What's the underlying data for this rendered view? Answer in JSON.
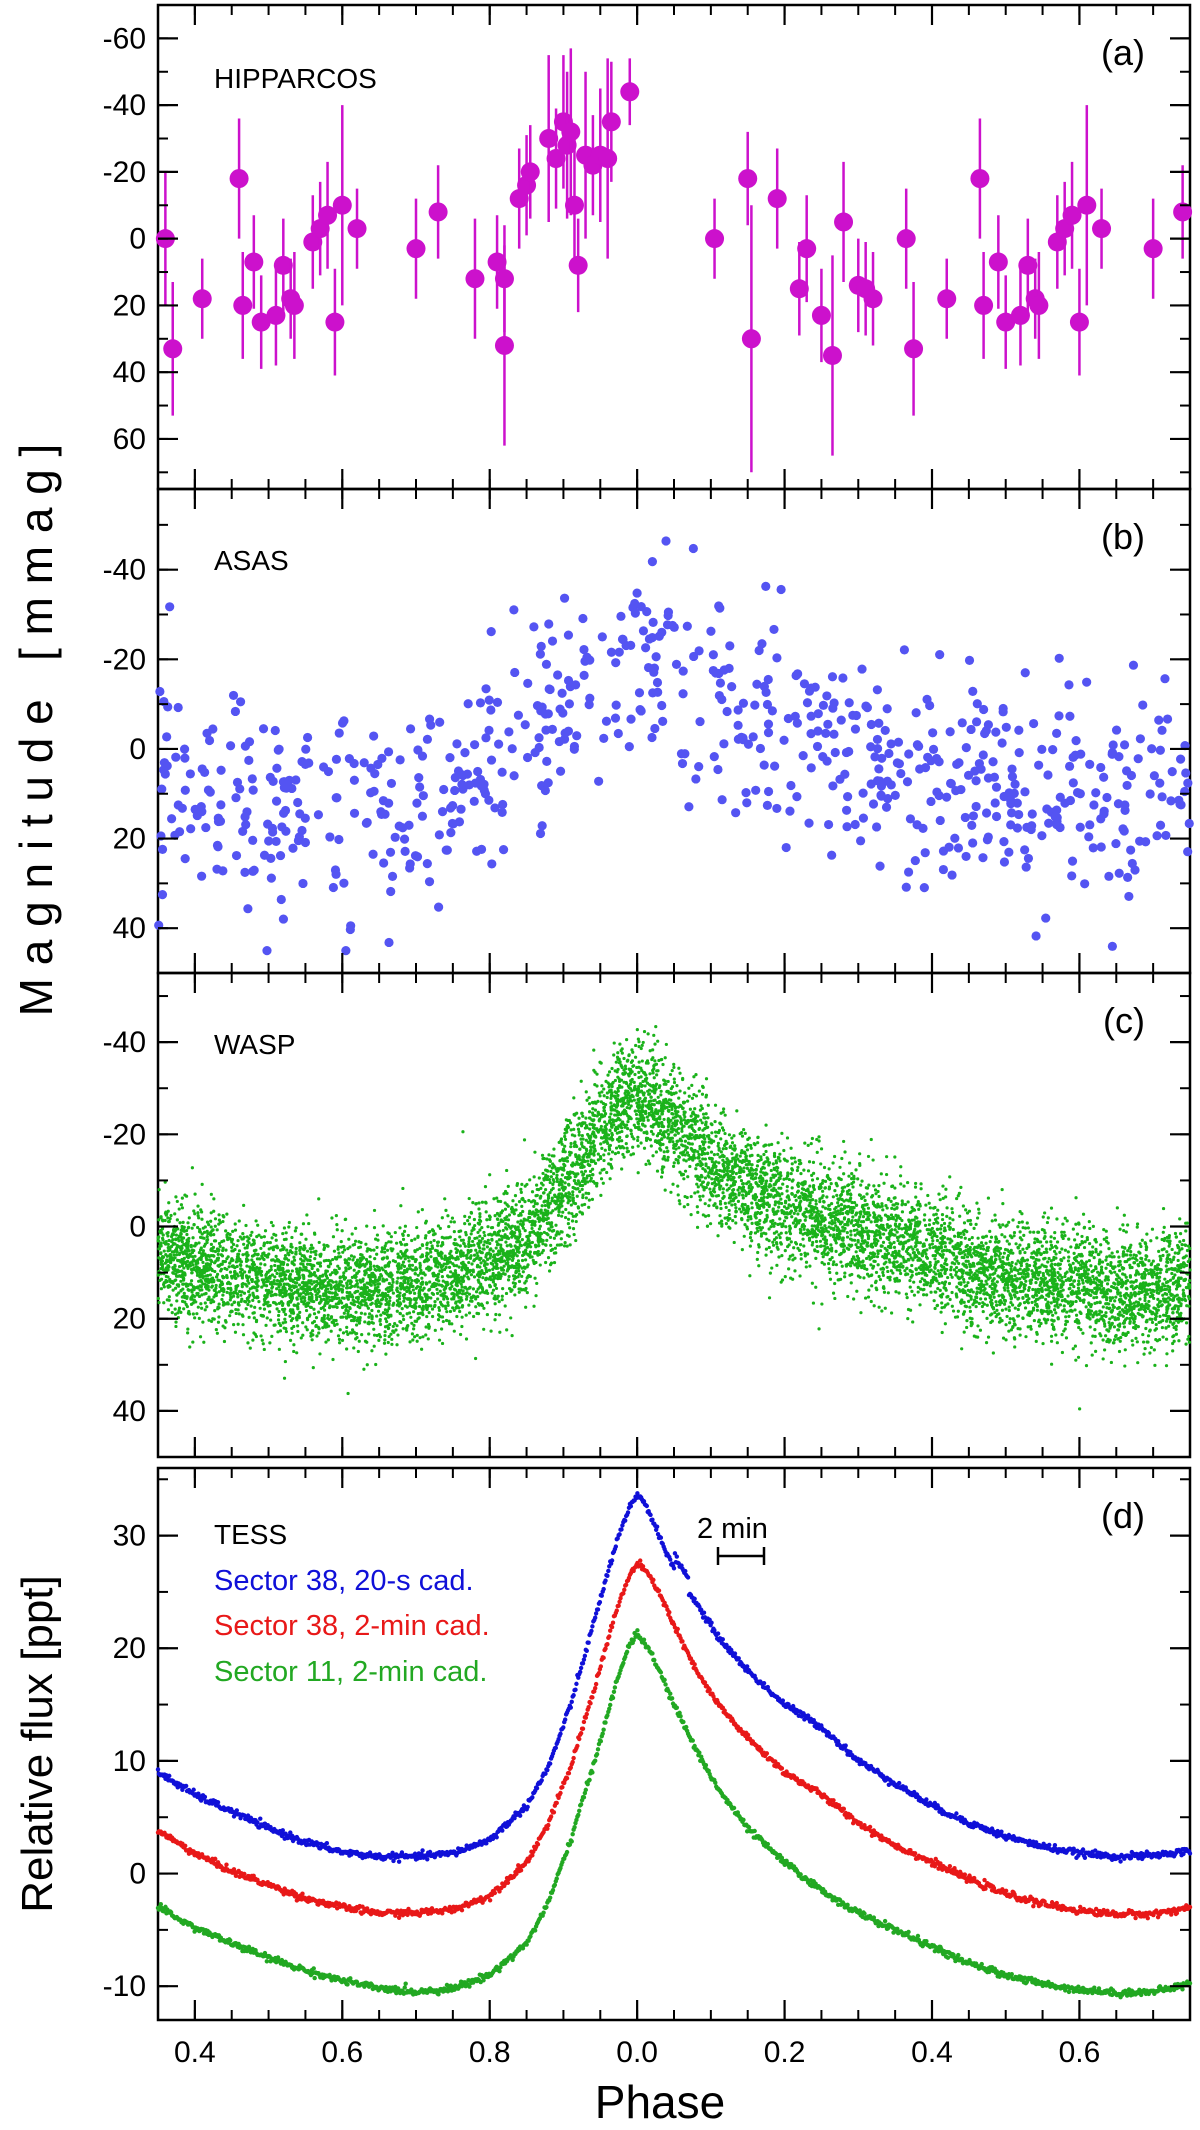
{
  "figure": {
    "ylabel_top": "M a g n i t u d e   [ m m a g ]",
    "ylabel_bottom": "Relative flux [ppt]",
    "xlabel": "Phase",
    "x_tick_labels": [
      "0.4",
      "0.6",
      "0.8",
      "0.0",
      "0.2",
      "0.4",
      "0.6"
    ],
    "scale_bar_label": "2 min"
  },
  "chart_data": [
    {
      "type": "scatter",
      "panel": "(a)",
      "label": "HIPPARCOS",
      "color": "#cc11cc",
      "error_bars": true,
      "yrange": [
        75,
        -70
      ],
      "y_inverted": true,
      "yticks": [
        -60,
        -40,
        -20,
        0,
        20,
        40,
        60
      ],
      "ytick_labels": [
        "-60",
        "-40",
        "-20",
        "0",
        "20",
        "40",
        "60"
      ],
      "x_domain": [
        -0.65,
        0.75
      ],
      "points": [
        [
          -0.64,
          0,
          20
        ],
        [
          -0.63,
          33,
          20
        ],
        [
          -0.59,
          18,
          12
        ],
        [
          -0.54,
          -18,
          18
        ],
        [
          -0.535,
          20,
          16
        ],
        [
          -0.52,
          7,
          14
        ],
        [
          -0.51,
          25,
          14
        ],
        [
          -0.49,
          23,
          15
        ],
        [
          -0.48,
          8,
          14
        ],
        [
          -0.47,
          18,
          12
        ],
        [
          -0.465,
          20,
          16
        ],
        [
          -0.44,
          1,
          14
        ],
        [
          -0.43,
          -3,
          14
        ],
        [
          -0.42,
          -7,
          16
        ],
        [
          -0.41,
          25,
          16
        ],
        [
          -0.4,
          -10,
          30
        ],
        [
          -0.38,
          -3,
          12
        ],
        [
          -0.3,
          3,
          15
        ],
        [
          -0.27,
          -8,
          14
        ],
        [
          -0.22,
          12,
          18
        ],
        [
          -0.19,
          7,
          14
        ],
        [
          -0.18,
          32,
          30
        ],
        [
          -0.18,
          12,
          16
        ],
        [
          -0.16,
          -12,
          15
        ],
        [
          -0.15,
          -16,
          15
        ],
        [
          -0.145,
          -20,
          14
        ],
        [
          -0.12,
          -30,
          25
        ],
        [
          -0.11,
          -24,
          15
        ],
        [
          -0.1,
          -35,
          20
        ],
        [
          -0.095,
          -28,
          22
        ],
        [
          -0.09,
          -32,
          25
        ],
        [
          -0.085,
          -10,
          20
        ],
        [
          -0.08,
          8,
          14
        ],
        [
          -0.07,
          -25,
          25
        ],
        [
          -0.06,
          -22,
          15
        ],
        [
          -0.05,
          -25,
          20
        ],
        [
          -0.04,
          -24,
          30
        ],
        [
          -0.035,
          -35,
          18
        ],
        [
          -0.01,
          -44,
          10
        ],
        [
          0.105,
          0,
          12
        ],
        [
          0.15,
          -18,
          14
        ],
        [
          0.155,
          30,
          40
        ],
        [
          0.19,
          -12,
          15
        ],
        [
          0.22,
          15,
          14
        ],
        [
          0.23,
          3,
          16
        ],
        [
          0.25,
          23,
          14
        ],
        [
          0.265,
          35,
          30
        ],
        [
          0.28,
          -5,
          18
        ],
        [
          0.3,
          14,
          14
        ],
        [
          0.31,
          15,
          14
        ],
        [
          0.32,
          18,
          14
        ],
        [
          0.365,
          0,
          15
        ],
        [
          0.375,
          33,
          20
        ],
        [
          0.42,
          18,
          12
        ],
        [
          0.465,
          -18,
          18
        ],
        [
          0.47,
          20,
          16
        ],
        [
          0.49,
          7,
          14
        ],
        [
          0.5,
          25,
          14
        ],
        [
          0.52,
          23,
          15
        ],
        [
          0.53,
          8,
          14
        ],
        [
          0.54,
          18,
          12
        ],
        [
          0.545,
          20,
          16
        ],
        [
          0.57,
          1,
          14
        ],
        [
          0.58,
          -3,
          14
        ],
        [
          0.59,
          -7,
          16
        ],
        [
          0.6,
          25,
          16
        ],
        [
          0.61,
          -10,
          30
        ],
        [
          0.63,
          -3,
          12
        ],
        [
          0.7,
          3,
          15
        ],
        [
          0.74,
          -8,
          14
        ]
      ]
    },
    {
      "type": "scatter",
      "panel": "(b)",
      "label": "ASAS",
      "color": "#5454f2",
      "yrange": [
        50,
        -58
      ],
      "y_inverted": true,
      "yticks": [
        -40,
        -20,
        0,
        20,
        40
      ],
      "ytick_labels": [
        "-40",
        "-20",
        "0",
        "20",
        "40"
      ],
      "approx_points": 720,
      "model": "phase-folded light curve; approx. +10 mmag near phase 0.6, -20 mmag near phase 0.0, scatter about 12 mmag",
      "profile": [
        [
          -0.65,
          8
        ],
        [
          -0.55,
          10
        ],
        [
          -0.45,
          12
        ],
        [
          -0.35,
          13
        ],
        [
          -0.3,
          12
        ],
        [
          -0.22,
          5
        ],
        [
          -0.15,
          -6
        ],
        [
          -0.08,
          -15
        ],
        [
          -0.02,
          -21
        ],
        [
          0.02,
          -20
        ],
        [
          0.08,
          -15
        ],
        [
          0.15,
          -5
        ],
        [
          0.25,
          1
        ],
        [
          0.35,
          5
        ],
        [
          0.45,
          8
        ],
        [
          0.55,
          10
        ],
        [
          0.65,
          11
        ],
        [
          0.75,
          10
        ]
      ]
    },
    {
      "type": "scatter",
      "panel": "(c)",
      "label": "WASP",
      "color": "#1ab21a",
      "yrange": [
        50,
        -55
      ],
      "y_inverted": true,
      "yticks": [
        -40,
        -20,
        0,
        20,
        40
      ],
      "ytick_labels": [
        "-40",
        "-20",
        "0",
        "20",
        "40"
      ],
      "approx_points": 9000,
      "model": "phase-folded light curve; peak approx. -28 mmag at phase 0.0, minimum approx. +14 mmag near phase 0.65, scatter about 6 mmag",
      "profile": [
        [
          -0.65,
          6
        ],
        [
          -0.6,
          8
        ],
        [
          -0.55,
          10
        ],
        [
          -0.5,
          12
        ],
        [
          -0.45,
          13
        ],
        [
          -0.4,
          14
        ],
        [
          -0.35,
          14
        ],
        [
          -0.3,
          12
        ],
        [
          -0.25,
          10
        ],
        [
          -0.2,
          7
        ],
        [
          -0.15,
          2
        ],
        [
          -0.12,
          -4
        ],
        [
          -0.08,
          -14
        ],
        [
          -0.05,
          -22
        ],
        [
          -0.02,
          -27
        ],
        [
          0.0,
          -28
        ],
        [
          0.02,
          -27
        ],
        [
          0.05,
          -22
        ],
        [
          0.1,
          -14
        ],
        [
          0.15,
          -9
        ],
        [
          0.2,
          -5
        ],
        [
          0.25,
          -1
        ],
        [
          0.3,
          1
        ],
        [
          0.35,
          3
        ],
        [
          0.4,
          6
        ],
        [
          0.45,
          9
        ],
        [
          0.5,
          11
        ],
        [
          0.55,
          12
        ],
        [
          0.6,
          13
        ],
        [
          0.65,
          14
        ],
        [
          0.7,
          14
        ],
        [
          0.75,
          12
        ]
      ]
    },
    {
      "type": "line",
      "panel": "(d)",
      "label": "TESS",
      "yrange": [
        -13,
        36
      ],
      "yticks": [
        -10,
        0,
        10,
        20,
        30
      ],
      "ytick_labels": [
        "-10",
        "0",
        "10",
        "20",
        "30"
      ],
      "x": [
        -0.65,
        -0.6,
        -0.55,
        -0.5,
        -0.45,
        -0.4,
        -0.35,
        -0.3,
        -0.25,
        -0.2,
        -0.15,
        -0.12,
        -0.09,
        -0.06,
        -0.03,
        -0.01,
        0.0,
        0.01,
        0.03,
        0.05,
        0.08,
        0.11,
        0.15,
        0.2,
        0.25,
        0.3,
        0.35,
        0.4,
        0.45,
        0.5,
        0.55,
        0.6,
        0.65,
        0.7,
        0.75
      ],
      "series": [
        {
          "name": "Sector 38, 20-s cad.",
          "color": "#1010d8",
          "values": [
            9.0,
            7.0,
            5.5,
            4.0,
            2.8,
            1.9,
            1.5,
            1.5,
            1.8,
            3.0,
            6.0,
            9.5,
            15.0,
            22.0,
            29.0,
            32.5,
            33.5,
            33.0,
            30.0,
            27.0,
            24.0,
            21.0,
            18.0,
            15.0,
            13.0,
            10.0,
            8.0,
            6.0,
            4.5,
            3.3,
            2.4,
            1.8,
            1.5,
            1.6,
            2.0
          ]
        },
        {
          "name": "Sector 38, 2-min cad.",
          "color": "#e81818",
          "values": [
            3.8,
            1.8,
            0.2,
            -1.0,
            -2.2,
            -3.0,
            -3.5,
            -3.5,
            -3.2,
            -2.0,
            1.0,
            4.5,
            9.5,
            16.0,
            23.0,
            26.5,
            27.5,
            27.0,
            25.0,
            22.0,
            18.0,
            15.0,
            12.0,
            9.0,
            7.0,
            4.5,
            2.5,
            1.0,
            -0.5,
            -1.8,
            -2.7,
            -3.3,
            -3.6,
            -3.6,
            -3.0
          ]
        },
        {
          "name": "Sector 11, 2-min cad.",
          "color": "#22a822",
          "values": [
            -3.0,
            -4.8,
            -6.2,
            -7.5,
            -8.6,
            -9.5,
            -10.2,
            -10.5,
            -10.2,
            -9.0,
            -6.2,
            -2.5,
            3.0,
            9.5,
            16.5,
            20.5,
            21.2,
            20.6,
            18.0,
            15.0,
            11.0,
            7.5,
            4.0,
            1.0,
            -1.5,
            -3.5,
            -5.0,
            -6.5,
            -8.0,
            -9.0,
            -9.8,
            -10.3,
            -10.6,
            -10.5,
            -9.8
          ]
        }
      ]
    }
  ]
}
